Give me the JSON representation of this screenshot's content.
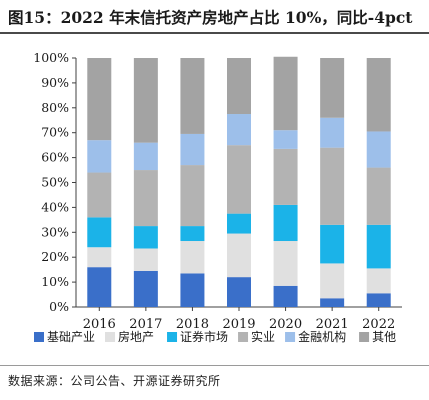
{
  "figure": {
    "title": "图15：2022 年末信托资产房地产占比 10%，同比-4pct",
    "source": "数据来源：公司公告、开源证券研究所"
  },
  "chart_data": {
    "type": "bar",
    "stacked": true,
    "categories": [
      "2016",
      "2017",
      "2018",
      "2019",
      "2020",
      "2021",
      "2022"
    ],
    "ylim": [
      0,
      100
    ],
    "yticks": [
      0,
      10,
      20,
      30,
      40,
      50,
      60,
      70,
      80,
      90,
      100
    ],
    "ytick_labels": [
      "0%",
      "10%",
      "20%",
      "30%",
      "40%",
      "50%",
      "60%",
      "70%",
      "80%",
      "90%",
      "100%"
    ],
    "legend_position": "bottom",
    "series": [
      {
        "name": "基础产业",
        "color": "#3a6fc9",
        "values": [
          16,
          14.5,
          13.5,
          12,
          8.5,
          3.5,
          5.5
        ]
      },
      {
        "name": "房地产",
        "color": "#e0e0e0",
        "values": [
          8,
          9,
          13,
          17.5,
          18,
          14,
          10
        ]
      },
      {
        "name": "证券市场",
        "color": "#1bb3e8",
        "values": [
          12,
          9,
          6,
          8,
          14.5,
          15.5,
          17.5
        ]
      },
      {
        "name": "实业",
        "color": "#b3b3b3",
        "values": [
          18,
          22.5,
          24.5,
          27.5,
          22.5,
          31,
          23
        ]
      },
      {
        "name": "金融机构",
        "color": "#9dbfea",
        "values": [
          13,
          11,
          12.5,
          12.5,
          7.5,
          12,
          14.5
        ]
      },
      {
        "name": "其他",
        "color": "#a3a3a3",
        "values": [
          33,
          34,
          30.5,
          22.5,
          29.5,
          24,
          29.5
        ]
      }
    ]
  }
}
